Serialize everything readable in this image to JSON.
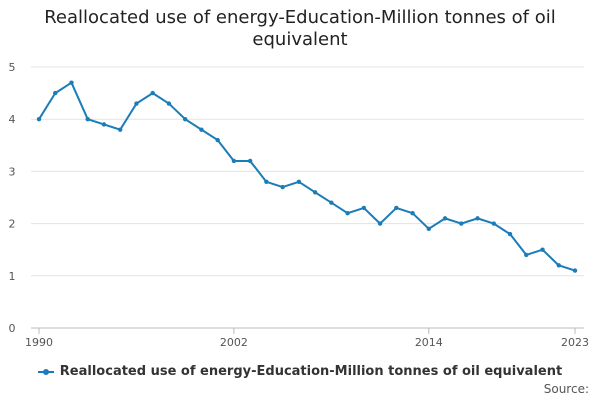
{
  "chart_data": {
    "type": "line",
    "title": "Reallocated use of energy-Education-Million tonnes of oil equivalent",
    "xlabel": "",
    "ylabel": "",
    "x": [
      1990,
      1991,
      1992,
      1993,
      1994,
      1995,
      1996,
      1997,
      1998,
      1999,
      2000,
      2001,
      2002,
      2003,
      2004,
      2005,
      2006,
      2007,
      2008,
      2009,
      2010,
      2011,
      2012,
      2013,
      2014,
      2015,
      2016,
      2017,
      2018,
      2019,
      2020,
      2021,
      2022,
      2023
    ],
    "series": [
      {
        "name": "Reallocated use of energy-Education-Million tonnes of oil equivalent",
        "color": "#1a7cb8",
        "values": [
          4.0,
          4.5,
          4.7,
          4.0,
          3.9,
          3.8,
          4.3,
          4.5,
          4.3,
          4.0,
          3.8,
          3.6,
          3.2,
          3.2,
          2.8,
          2.7,
          2.8,
          2.6,
          2.4,
          2.2,
          2.3,
          2.0,
          2.3,
          2.2,
          1.9,
          2.1,
          2.0,
          2.1,
          2.0,
          1.8,
          1.4,
          1.5,
          1.2,
          1.1
        ]
      }
    ],
    "ylim": [
      0,
      5
    ],
    "xlim": [
      1990,
      2023
    ],
    "yticks": [
      0,
      1,
      2,
      3,
      4,
      5
    ],
    "xticks": [
      1990,
      2002,
      2014,
      2023
    ],
    "grid": true,
    "legend_position": "bottom",
    "source_label": "Source:"
  }
}
